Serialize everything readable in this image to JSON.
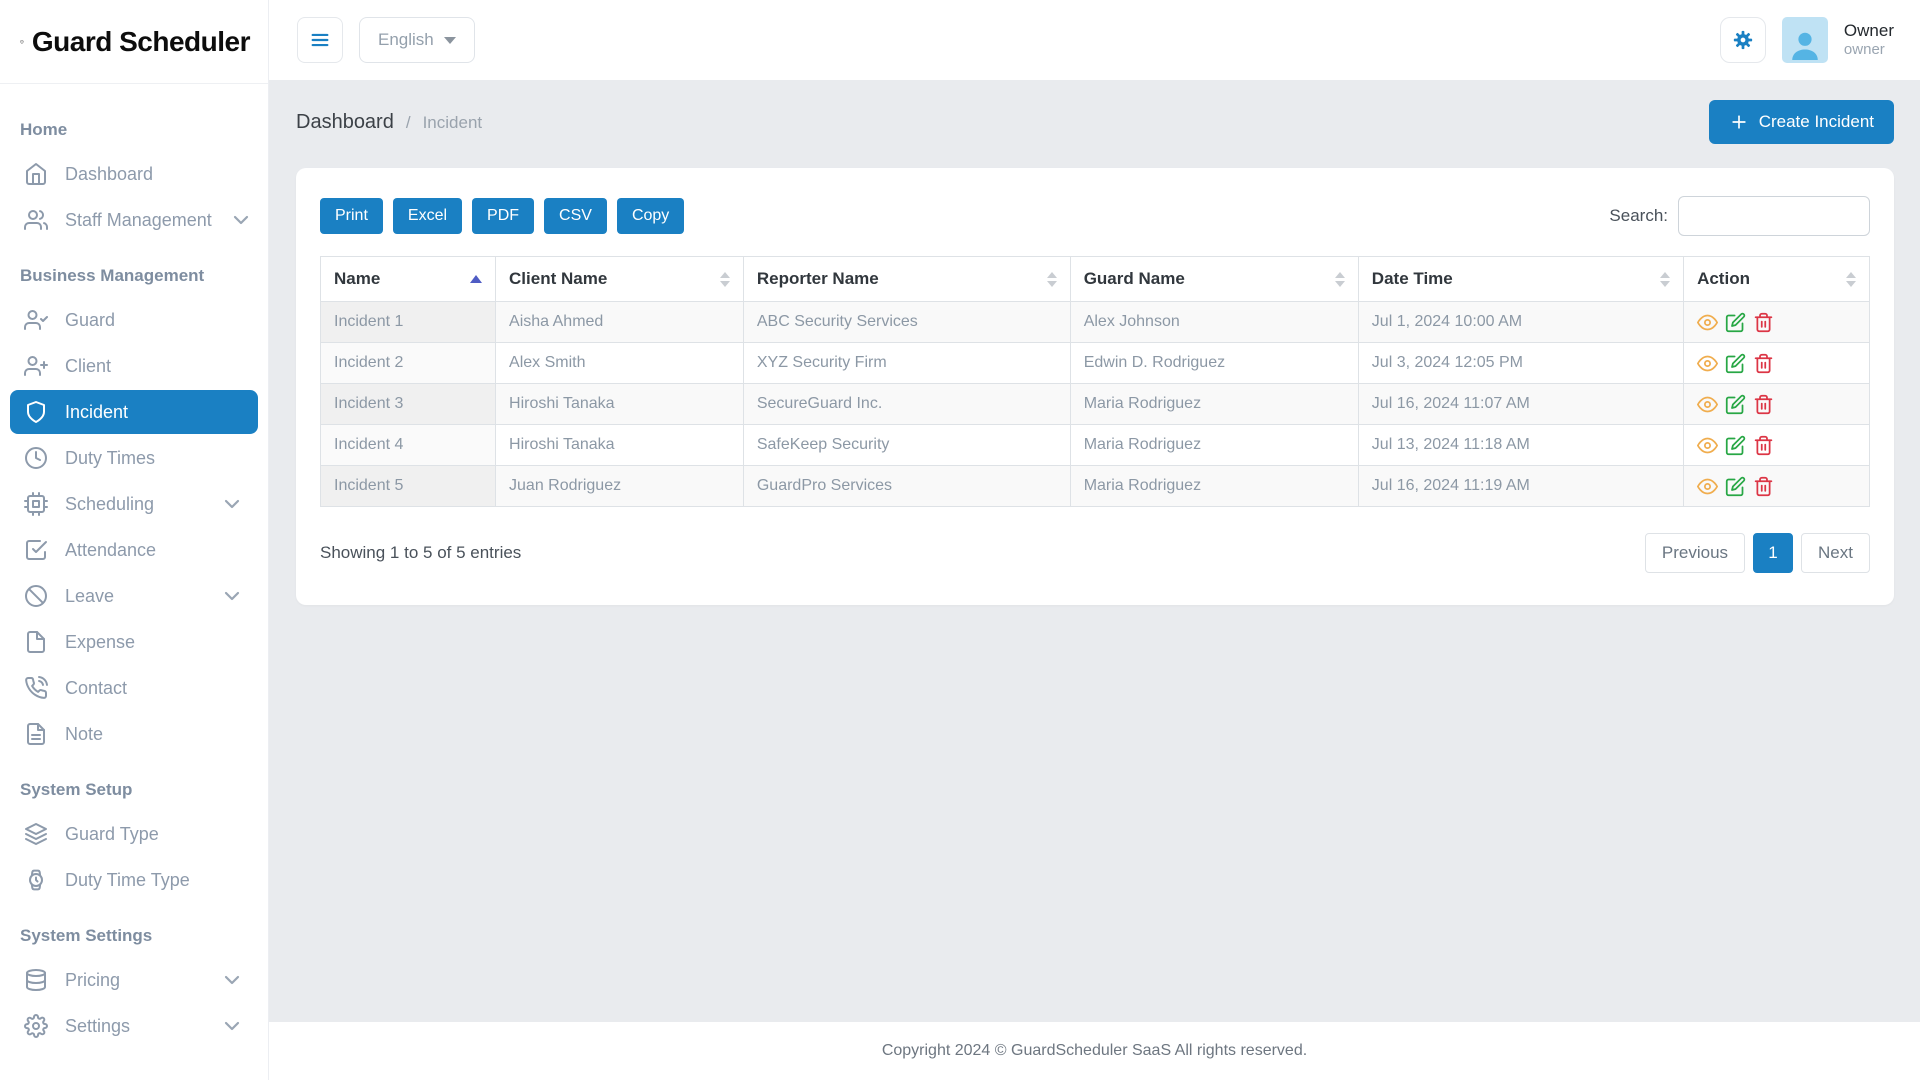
{
  "app": {
    "name": "Guard Scheduler"
  },
  "topbar": {
    "language": "English",
    "user": {
      "name": "Owner",
      "role": "owner"
    }
  },
  "breadcrumb": {
    "parent": "Dashboard",
    "separator": "/",
    "current": "Incident"
  },
  "page": {
    "create_button_label": "Create Incident"
  },
  "sidebar": {
    "sections": [
      {
        "header": "Home",
        "items": [
          {
            "label": "Dashboard",
            "icon": "home-icon",
            "chevron": false,
            "active": false
          },
          {
            "label": "Staff Management",
            "icon": "users-icon",
            "chevron": true,
            "active": false
          }
        ]
      },
      {
        "header": "Business Management",
        "items": [
          {
            "label": "Guard",
            "icon": "user-check-icon",
            "chevron": false,
            "active": false
          },
          {
            "label": "Client",
            "icon": "user-plus-icon",
            "chevron": false,
            "active": false
          },
          {
            "label": "Incident",
            "icon": "shield-icon",
            "chevron": false,
            "active": true
          },
          {
            "label": "Duty Times",
            "icon": "clock-icon",
            "chevron": false,
            "active": false
          },
          {
            "label": "Scheduling",
            "icon": "cpu-icon",
            "chevron": true,
            "active": false
          },
          {
            "label": "Attendance",
            "icon": "check-square-icon",
            "chevron": false,
            "active": false
          },
          {
            "label": "Leave",
            "icon": "ban-icon",
            "chevron": true,
            "active": false
          },
          {
            "label": "Expense",
            "icon": "file-icon",
            "chevron": false,
            "active": false
          },
          {
            "label": "Contact",
            "icon": "phone-icon",
            "chevron": false,
            "active": false
          },
          {
            "label": "Note",
            "icon": "file-text-icon",
            "chevron": false,
            "active": false
          }
        ]
      },
      {
        "header": "System Setup",
        "items": [
          {
            "label": "Guard Type",
            "icon": "layers-icon",
            "chevron": false,
            "active": false
          },
          {
            "label": "Duty Time Type",
            "icon": "watch-icon",
            "chevron": false,
            "active": false
          }
        ]
      },
      {
        "header": "System Settings",
        "items": [
          {
            "label": "Pricing",
            "icon": "database-icon",
            "chevron": true,
            "active": false
          },
          {
            "label": "Settings",
            "icon": "gear-icon",
            "chevron": true,
            "active": false
          }
        ]
      }
    ]
  },
  "table_card": {
    "export_buttons": [
      "Print",
      "Excel",
      "PDF",
      "CSV",
      "Copy"
    ],
    "search_label": "Search:",
    "search_value": "",
    "columns": [
      {
        "label": "Name",
        "sorted": "asc"
      },
      {
        "label": "Client Name",
        "sorted": "none"
      },
      {
        "label": "Reporter Name",
        "sorted": "none"
      },
      {
        "label": "Guard Name",
        "sorted": "none"
      },
      {
        "label": "Date Time",
        "sorted": "none"
      },
      {
        "label": "Action",
        "sorted": "none"
      }
    ],
    "rows": [
      {
        "name": "Incident 1",
        "client": "Aisha Ahmed",
        "reporter": "ABC Security Services",
        "guard": "Alex Johnson",
        "datetime": "Jul 1, 2024 10:00 AM"
      },
      {
        "name": "Incident 2",
        "client": "Alex Smith",
        "reporter": "XYZ Security Firm",
        "guard": "Edwin D. Rodriguez",
        "datetime": "Jul 3, 2024 12:05 PM"
      },
      {
        "name": "Incident 3",
        "client": "Hiroshi Tanaka",
        "reporter": "SecureGuard Inc.",
        "guard": "Maria Rodriguez",
        "datetime": "Jul 16, 2024 11:07 AM"
      },
      {
        "name": "Incident 4",
        "client": "Hiroshi Tanaka",
        "reporter": "SafeKeep Security",
        "guard": "Maria Rodriguez",
        "datetime": "Jul 13, 2024 11:18 AM"
      },
      {
        "name": "Incident 5",
        "client": "Juan Rodriguez",
        "reporter": "GuardPro Services",
        "guard": "Maria Rodriguez",
        "datetime": "Jul 16, 2024 11:19 AM"
      }
    ],
    "row_actions": [
      "view",
      "edit",
      "delete"
    ],
    "summary": "Showing 1 to 5 of 5 entries",
    "pagination": {
      "previous": "Previous",
      "pages": [
        {
          "label": "1",
          "active": true
        }
      ],
      "next": "Next"
    }
  },
  "footer": {
    "copyright": "Copyright 2024 © GuardScheduler SaaS All rights reserved."
  },
  "colors": {
    "primary": "#1a80c3",
    "view": "#f0ad4e",
    "edit": "#28a745",
    "delete": "#dc3545"
  }
}
